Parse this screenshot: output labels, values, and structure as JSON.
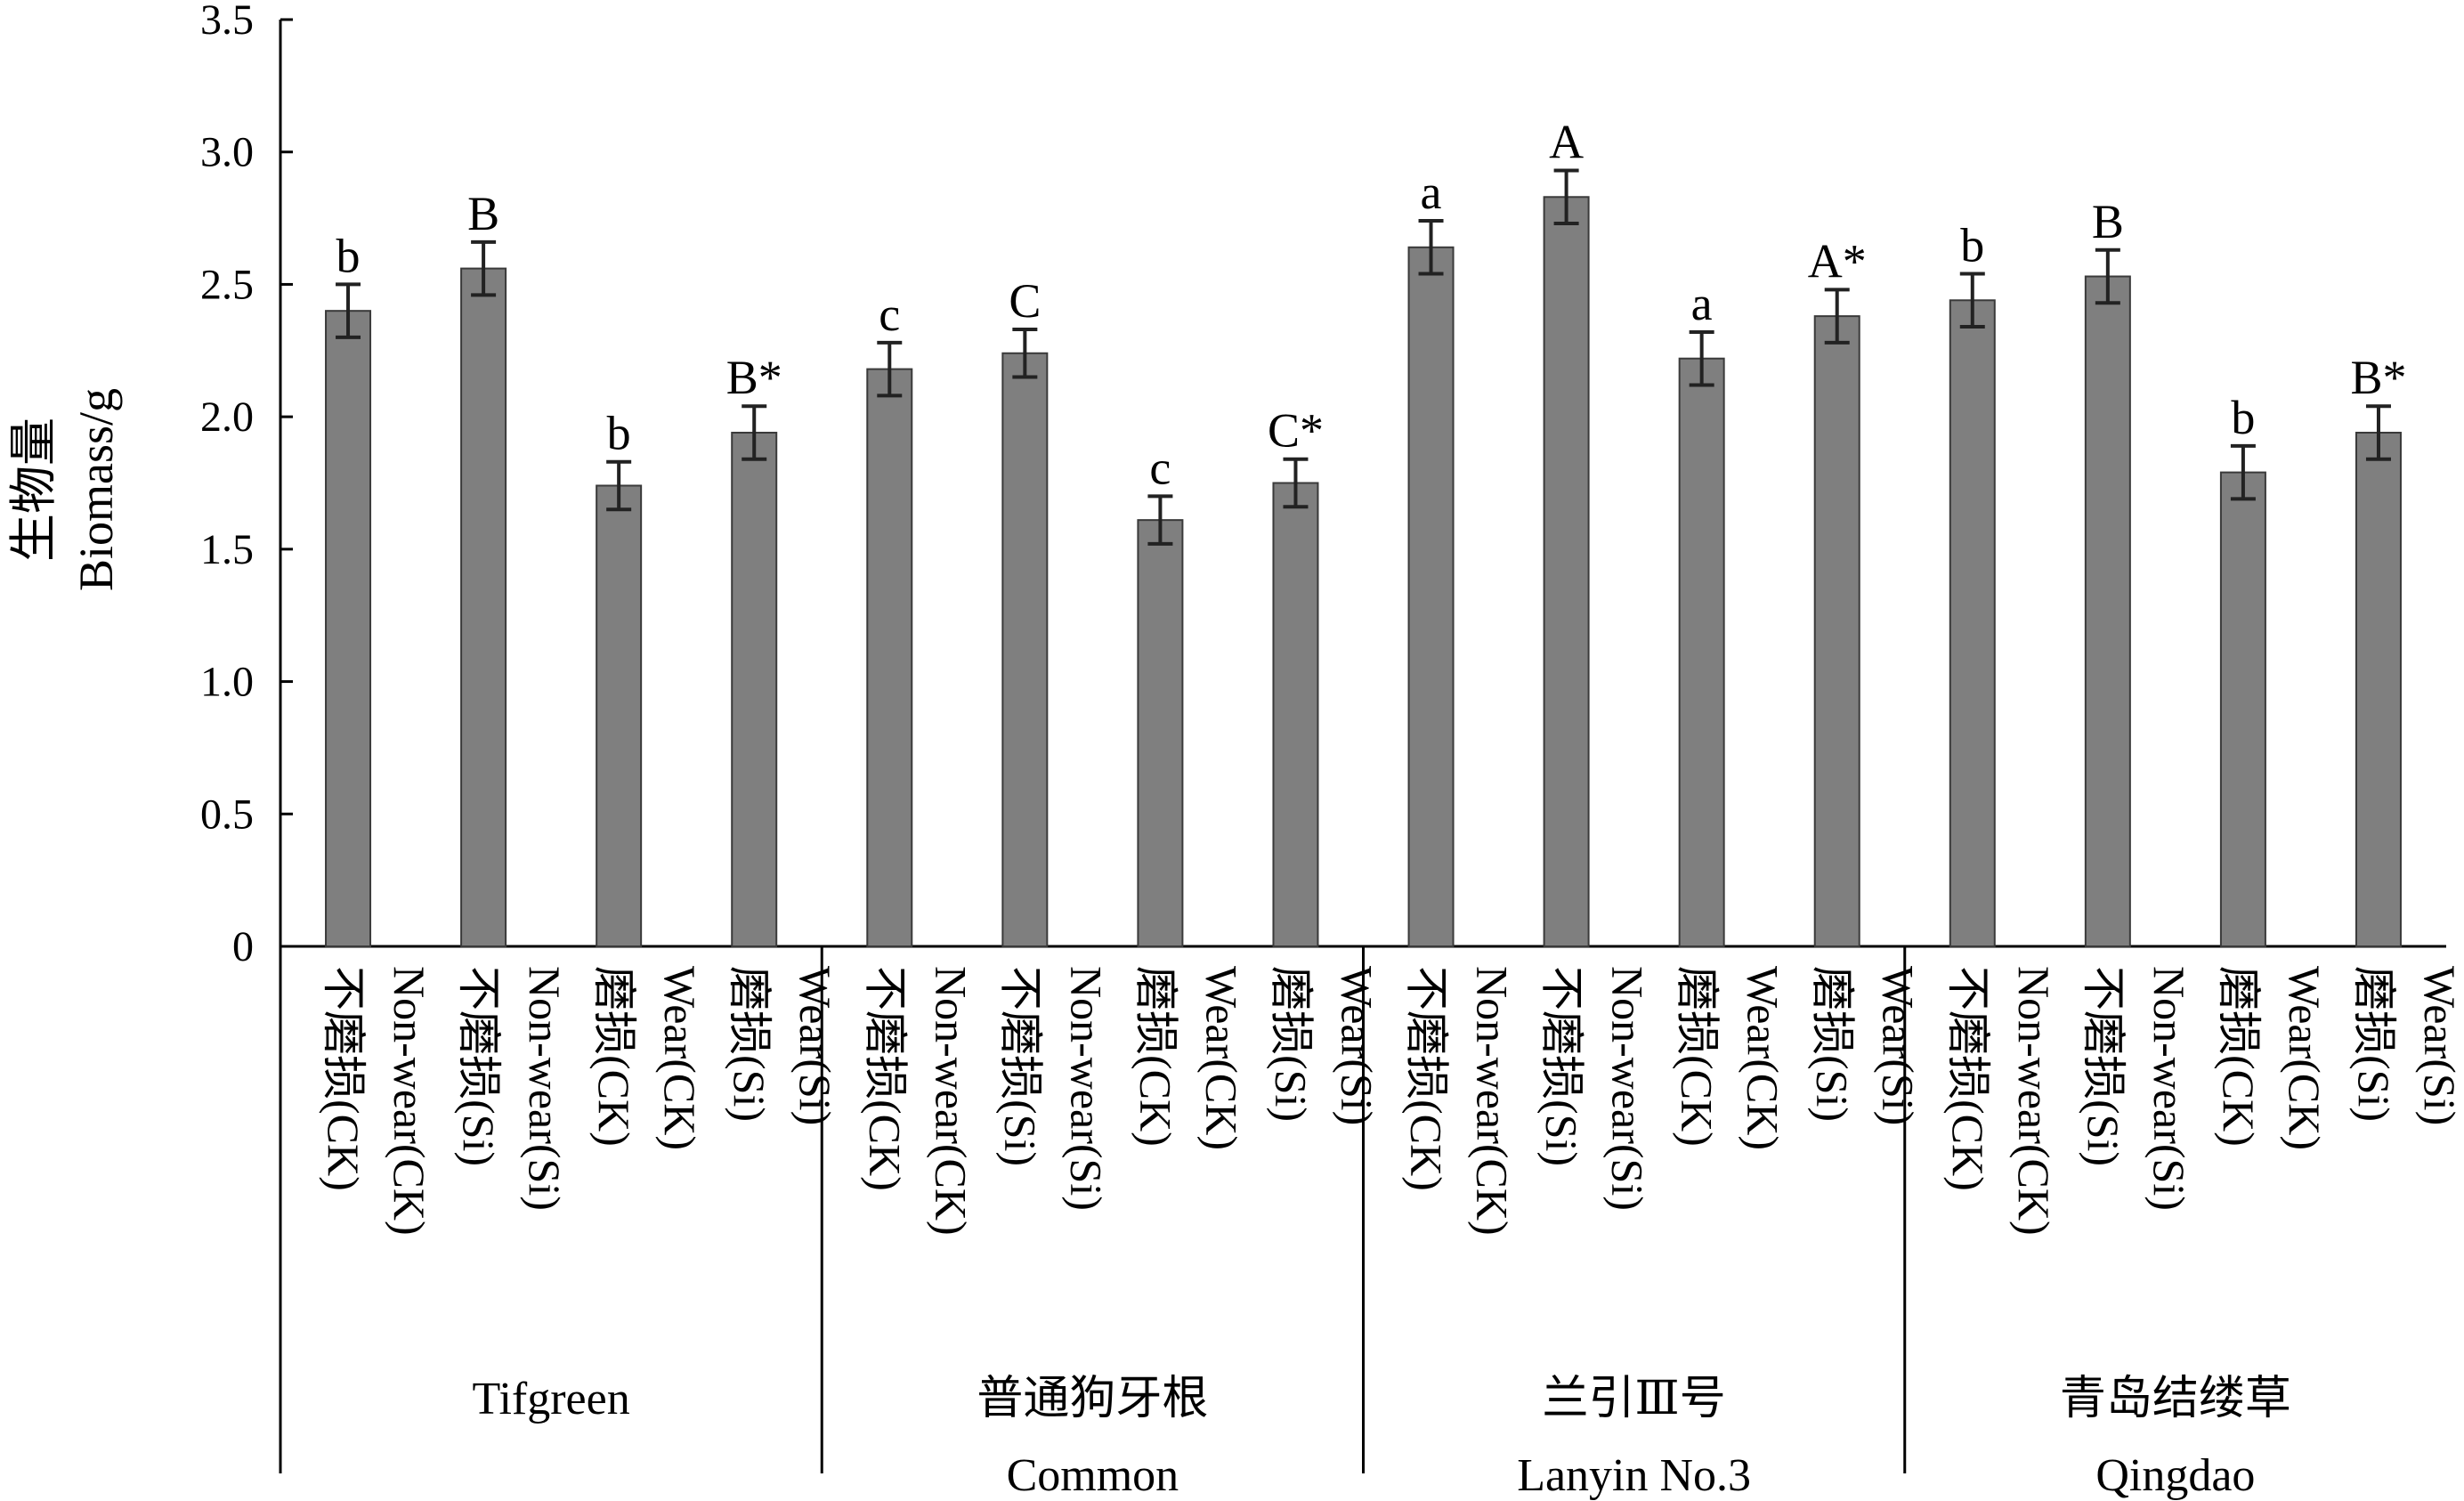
{
  "chart_data": {
    "type": "bar",
    "ylabel_zh": "生物量",
    "ylabel_en": "Biomass/g",
    "ylim": [
      0,
      3.5
    ],
    "yticks": [
      "0",
      "0.5",
      "1.0",
      "1.5",
      "2.0",
      "2.5",
      "3.0",
      "3.5"
    ],
    "bar_color": "#7f7f7f",
    "grid": false,
    "groups": [
      {
        "name_zh": "",
        "name_en": "Tifgreen",
        "bars": [
          {
            "label_zh": "不磨损(CK)",
            "label_en": "Non-wear(CK)",
            "value": 2.4,
            "error": 0.1,
            "sig": "b"
          },
          {
            "label_zh": "不磨损(Si)",
            "label_en": "Non-wear(Si)",
            "value": 2.56,
            "error": 0.1,
            "sig": "B"
          },
          {
            "label_zh": "磨损(CK)",
            "label_en": "Wear(CK)",
            "value": 1.74,
            "error": 0.09,
            "sig": "b"
          },
          {
            "label_zh": "磨损(Si)",
            "label_en": "Wear(Si)",
            "value": 1.94,
            "error": 0.1,
            "sig": "B*"
          }
        ]
      },
      {
        "name_zh": "普通狗牙根",
        "name_en": "Common",
        "bars": [
          {
            "label_zh": "不磨损(CK)",
            "label_en": "Non-wear(CK)",
            "value": 2.18,
            "error": 0.1,
            "sig": "c"
          },
          {
            "label_zh": "不磨损(Si)",
            "label_en": "Non-wear(Si)",
            "value": 2.24,
            "error": 0.09,
            "sig": "C"
          },
          {
            "label_zh": "磨损(CK)",
            "label_en": "Wear(CK)",
            "value": 1.61,
            "error": 0.09,
            "sig": "c"
          },
          {
            "label_zh": "磨损(Si)",
            "label_en": "Wear(Si)",
            "value": 1.75,
            "error": 0.09,
            "sig": "C*"
          }
        ]
      },
      {
        "name_zh": "兰引Ⅲ号",
        "name_en": "Lanyin No.3",
        "bars": [
          {
            "label_zh": "不磨损(CK)",
            "label_en": "Non-wear(CK)",
            "value": 2.64,
            "error": 0.1,
            "sig": "a"
          },
          {
            "label_zh": "不磨损(Si)",
            "label_en": "Non-wear(Si)",
            "value": 2.83,
            "error": 0.1,
            "sig": "A"
          },
          {
            "label_zh": "磨损(CK)",
            "label_en": "Wear(CK)",
            "value": 2.22,
            "error": 0.1,
            "sig": "a"
          },
          {
            "label_zh": "磨损(Si)",
            "label_en": "Wear(Si)",
            "value": 2.38,
            "error": 0.1,
            "sig": "A*"
          }
        ]
      },
      {
        "name_zh": "青岛结缕草",
        "name_en": "Qingdao",
        "bars": [
          {
            "label_zh": "不磨损(CK)",
            "label_en": "Non-wear(CK)",
            "value": 2.44,
            "error": 0.1,
            "sig": "b"
          },
          {
            "label_zh": "不磨损(Si)",
            "label_en": "Non-wear(Si)",
            "value": 2.53,
            "error": 0.1,
            "sig": "B"
          },
          {
            "label_zh": "磨损(CK)",
            "label_en": "Wear(CK)",
            "value": 1.79,
            "error": 0.1,
            "sig": "b"
          },
          {
            "label_zh": "磨损(Si)",
            "label_en": "Wear(Si)",
            "value": 1.94,
            "error": 0.1,
            "sig": "B*"
          }
        ]
      }
    ]
  }
}
